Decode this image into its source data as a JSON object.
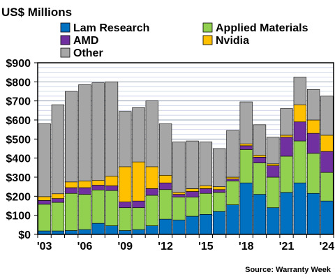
{
  "chart_data": {
    "type": "bar",
    "stacked": true,
    "title": "US$ Millions",
    "source": "Source: Warranty Week",
    "ylim": [
      0,
      900
    ],
    "y_ticks": [
      "$0",
      "$100",
      "$200",
      "$300",
      "$400",
      "$500",
      "$600",
      "$700",
      "$800",
      "$900"
    ],
    "categories": [
      "2003",
      "2004",
      "2005",
      "2006",
      "2007",
      "2008",
      "2009",
      "2010",
      "2011",
      "2012",
      "2013",
      "2014",
      "2015",
      "2016",
      "2017",
      "2018",
      "2019",
      "2020",
      "2021",
      "2022",
      "2023",
      "2024"
    ],
    "x_tick_labels": [
      {
        "index": 0,
        "label": "'03"
      },
      {
        "index": 3,
        "label": "'06"
      },
      {
        "index": 6,
        "label": "'09"
      },
      {
        "index": 9,
        "label": "'12"
      },
      {
        "index": 12,
        "label": "'15"
      },
      {
        "index": 15,
        "label": "'18"
      },
      {
        "index": 18,
        "label": "'21"
      },
      {
        "index": 21,
        "label": "'24"
      }
    ],
    "legend_placement": "top",
    "grid": true,
    "series": [
      {
        "name": "Lam Research",
        "color": "#0070c0",
        "values": [
          18,
          18,
          20,
          25,
          58,
          45,
          20,
          25,
          45,
          80,
          75,
          95,
          105,
          120,
          155,
          270,
          210,
          140,
          220,
          270,
          215,
          175
        ]
      },
      {
        "name": "Applied Materials",
        "color": "#92d050",
        "values": [
          140,
          150,
          195,
          185,
          175,
          185,
          120,
          115,
          160,
          155,
          120,
          100,
          110,
          100,
          125,
          175,
          165,
          160,
          190,
          220,
          210,
          150
        ]
      },
      {
        "name": "AMD",
        "color": "#7030a0",
        "values": [
          20,
          20,
          30,
          35,
          25,
          25,
          30,
          35,
          35,
          35,
          15,
          30,
          25,
          15,
          10,
          20,
          30,
          60,
          100,
          100,
          105,
          110
        ]
      },
      {
        "name": "Nvidia",
        "color": "#ffc000",
        "values": [
          20,
          25,
          30,
          35,
          25,
          50,
          185,
          205,
          115,
          40,
          10,
          15,
          15,
          15,
          10,
          10,
          10,
          10,
          10,
          90,
          70,
          85
        ]
      },
      {
        "name": "Other",
        "color": "#a6a6a6",
        "values": [
          382,
          467,
          475,
          505,
          512,
          495,
          290,
          285,
          345,
          270,
          265,
          250,
          230,
          200,
          245,
          220,
          160,
          140,
          140,
          145,
          160,
          205
        ]
      }
    ]
  }
}
